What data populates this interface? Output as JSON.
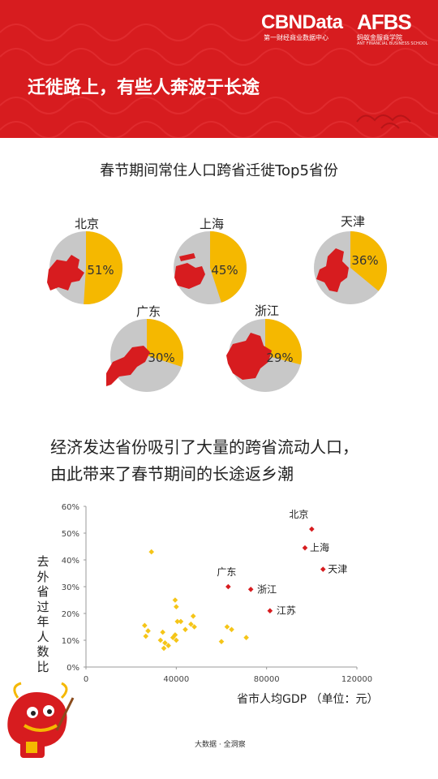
{
  "header": {
    "logo_main": "CBNData",
    "logo_main_sub": "第一财经商业数据中心",
    "logo_partner": "AFBS",
    "logo_partner_sub": "蚂蚁金服商学院",
    "logo_partner_sub_en": "ANT FINANCIAL BUSINESS SCHOOL",
    "headline": "迁徙路上，有些人奔波于长途",
    "colors": {
      "red": "#d71c1f",
      "yellow": "#f5b800",
      "gray": "#c8c8c8"
    }
  },
  "chart_data": [
    {
      "type": "pie",
      "title": "春节期间常住人口跨省迁徙Top5省份",
      "slices": [
        {
          "label": "北京",
          "value": 51,
          "text": "51%"
        },
        {
          "label": "上海",
          "value": 45,
          "text": "45%"
        },
        {
          "label": "天津",
          "value": 36,
          "text": "36%"
        },
        {
          "label": "广东",
          "value": 30,
          "text": "30%"
        },
        {
          "label": "浙江",
          "value": 29,
          "text": "29%"
        }
      ],
      "colors": {
        "share": "#f5b800",
        "rest": "#c8c8c8",
        "map": "#d71c1f"
      }
    },
    {
      "type": "scatter",
      "title_lines": [
        "经济发达省份吸引了大量的跨省流动人口，",
        "由此带来了春节期间的长途返乡潮"
      ],
      "xlabel": "省市人均GDP （单位：元）",
      "ylabel": "去外省过年人数比",
      "xlim": [
        0,
        120000
      ],
      "ylim": [
        0,
        60
      ],
      "xticks": [
        "0",
        "40000",
        "80000",
        "120000"
      ],
      "yticks": [
        "0%",
        "10%",
        "20%",
        "30%",
        "40%",
        "50%",
        "60%"
      ],
      "series": [
        {
          "color": "#d71c1f",
          "points": [
            {
              "x": 100000,
              "y": 51.5,
              "label": "北京"
            },
            {
              "x": 97000,
              "y": 44.5,
              "label": "上海"
            },
            {
              "x": 105000,
              "y": 36.5,
              "label": "天津"
            },
            {
              "x": 63000,
              "y": 30,
              "label": "广东"
            },
            {
              "x": 73000,
              "y": 29,
              "label": "浙江"
            },
            {
              "x": 81500,
              "y": 21,
              "label": "江苏"
            }
          ]
        },
        {
          "color": "#f5c518",
          "points": [
            {
              "x": 29000,
              "y": 43
            },
            {
              "x": 26000,
              "y": 15.5
            },
            {
              "x": 26500,
              "y": 11.5
            },
            {
              "x": 27500,
              "y": 13.5
            },
            {
              "x": 33000,
              "y": 10
            },
            {
              "x": 34000,
              "y": 13
            },
            {
              "x": 35000,
              "y": 9
            },
            {
              "x": 36500,
              "y": 8
            },
            {
              "x": 34500,
              "y": 7
            },
            {
              "x": 38500,
              "y": 11
            },
            {
              "x": 39500,
              "y": 12
            },
            {
              "x": 40000,
              "y": 10
            },
            {
              "x": 39500,
              "y": 25
            },
            {
              "x": 40000,
              "y": 22.5
            },
            {
              "x": 40500,
              "y": 17
            },
            {
              "x": 42000,
              "y": 17
            },
            {
              "x": 44000,
              "y": 14
            },
            {
              "x": 46500,
              "y": 16
            },
            {
              "x": 47500,
              "y": 19
            },
            {
              "x": 48000,
              "y": 15
            },
            {
              "x": 60000,
              "y": 9.5
            },
            {
              "x": 62500,
              "y": 15
            },
            {
              "x": 64500,
              "y": 14
            },
            {
              "x": 71000,
              "y": 11
            }
          ]
        }
      ]
    }
  ],
  "footer": {
    "source": "大数据 · 全洞察"
  }
}
